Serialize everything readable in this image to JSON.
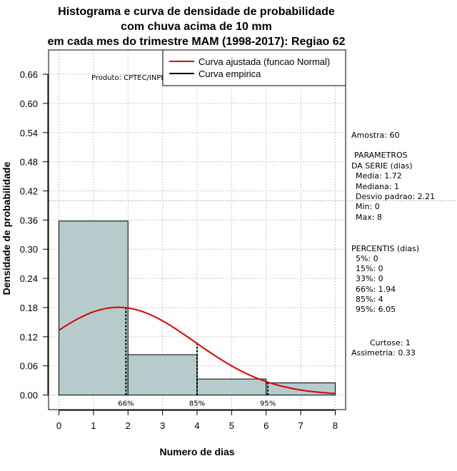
{
  "chart_data": {
    "type": "bar",
    "title": [
      "Histograma e curva de densidade de probabilidade",
      "com chuva acima de 10 mm",
      "em cada mes do trimestre MAM (1998-2017): Regiao 62"
    ],
    "xlabel": "Numero de dias",
    "ylabel": "Densidade de probabilidade",
    "xlim": [
      -0.3,
      8.3
    ],
    "ylim": [
      -0.03,
      0.71
    ],
    "xticks": [
      0,
      1,
      2,
      3,
      4,
      5,
      6,
      7,
      8
    ],
    "yticks": [
      0.0,
      0.06,
      0.12,
      0.18,
      0.24,
      0.3,
      0.36,
      0.42,
      0.48,
      0.54,
      0.6,
      0.66
    ],
    "ytick_labels": [
      "0.00",
      "0.06",
      "0.12",
      "0.18",
      "0.24",
      "0.30",
      "0.36",
      "0.42",
      "0.48",
      "0.54",
      "0.60",
      "0.66"
    ],
    "hline": 0.4,
    "bars": [
      {
        "x0": 0,
        "x1": 2,
        "value": 0.358
      },
      {
        "x0": 2,
        "x1": 4,
        "value": 0.083
      },
      {
        "x0": 4,
        "x1": 6,
        "value": 0.033
      },
      {
        "x0": 6,
        "x1": 8,
        "value": 0.025
      }
    ],
    "bar_color": "#b6cccc",
    "curve": {
      "name": "Curva ajustada (funcao Normal)",
      "mean": 1.72,
      "sd": 2.21,
      "color": "#dd0000",
      "from": 0,
      "to": 8
    },
    "empirical": {
      "name": "Curva empirica",
      "color": "#000000"
    },
    "percentile_lines": [
      {
        "label": "66%",
        "x": 1.94
      },
      {
        "label": "85%",
        "x": 4
      },
      {
        "label": "95%",
        "x": 6.05
      }
    ],
    "legend": [
      "Curva ajustada (funcao Normal)",
      "Curva empirica"
    ],
    "legend_position": "top-right",
    "grid": true
  },
  "credit": "Produto: CPTEC/INPE",
  "stats": {
    "sample": "Amostra: 60",
    "params_title": [
      "PARAMETROS",
      "DA SERIE (dias)"
    ],
    "params": [
      "Media: 1.72",
      "Mediana: 1",
      "Desvio padrao: 2.21",
      "Min: 0",
      "Max: 8"
    ],
    "percentis_title": "PERCENTIS (dias)",
    "percentis": [
      "5%: 0",
      "15%: 0",
      "33%: 0",
      "66%: 1.94",
      "85%: 4",
      "95%: 6.05"
    ],
    "kurtosis": "Curtose: 1",
    "skewness": "Assimetria: 0.33"
  }
}
